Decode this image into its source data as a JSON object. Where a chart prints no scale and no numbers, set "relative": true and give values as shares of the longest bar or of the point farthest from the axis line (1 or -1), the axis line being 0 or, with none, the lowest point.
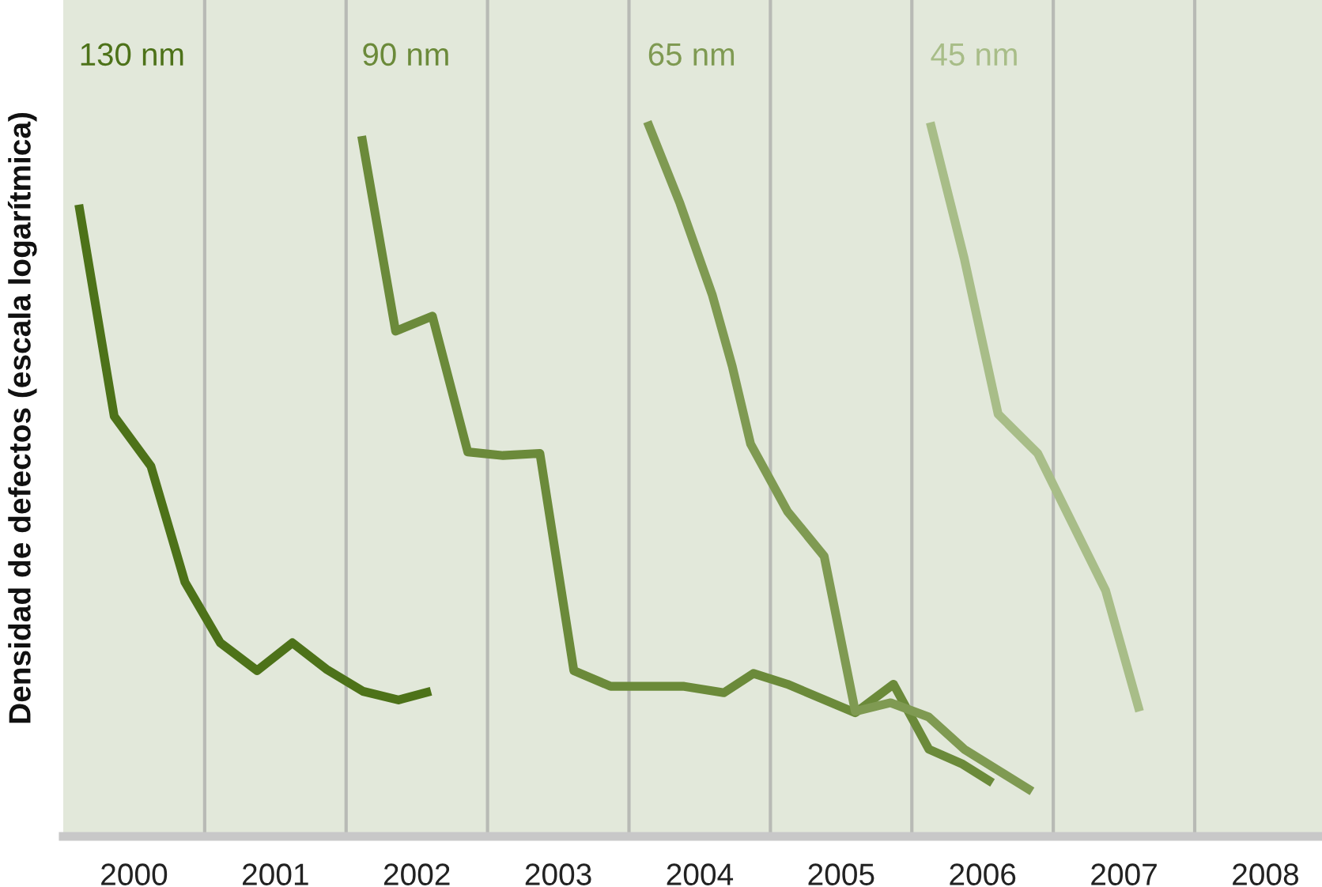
{
  "chart_data": {
    "type": "line",
    "relative": true,
    "ylabel": "Densidad de defectos (escala logarítmica)",
    "xlim": [
      2000,
      2008.9
    ],
    "xticks": [
      {
        "value": 2000.5,
        "label": "2000"
      },
      {
        "value": 2001.5,
        "label": "2001"
      },
      {
        "value": 2002.5,
        "label": "2002"
      },
      {
        "value": 2003.5,
        "label": "2003"
      },
      {
        "value": 2004.5,
        "label": "2004"
      },
      {
        "value": 2005.5,
        "label": "2005"
      },
      {
        "value": 2006.5,
        "label": "2006"
      },
      {
        "value": 2007.5,
        "label": "2007"
      },
      {
        "value": 2008.5,
        "label": "2008"
      }
    ],
    "ref_lines": [
      {
        "axis": "x",
        "value": 2001,
        "color": "#b8bab5"
      },
      {
        "axis": "x",
        "value": 2002,
        "color": "#b8bab5"
      },
      {
        "axis": "x",
        "value": 2003,
        "color": "#b8bab5"
      },
      {
        "axis": "x",
        "value": 2004,
        "color": "#b8bab5"
      },
      {
        "axis": "x",
        "value": 2005,
        "color": "#b8bab5"
      },
      {
        "axis": "x",
        "value": 2006,
        "color": "#b8bab5"
      },
      {
        "axis": "x",
        "value": 2007,
        "color": "#b8bab5"
      },
      {
        "axis": "x",
        "value": 2008,
        "color": "#b8bab5"
      }
    ],
    "grid": false,
    "legend": false,
    "marker": "none",
    "line_style": "solid",
    "series": [
      {
        "name": "130 nm",
        "color": "#4d7219",
        "x": [
          2000.11,
          2000.36,
          2000.62,
          2000.86,
          2001.11,
          2001.37,
          2001.62,
          2001.86,
          2002.12,
          2002.37,
          2002.6
        ],
        "values": [
          0.884,
          0.588,
          0.518,
          0.356,
          0.271,
          0.232,
          0.271,
          0.234,
          0.203,
          0.191,
          0.203
        ]
      },
      {
        "name": "90 nm",
        "color": "#6b8a3a",
        "x": [
          2002.11,
          2002.35,
          2002.61,
          2002.86,
          2003.11,
          2003.37,
          2003.61,
          2003.87,
          2004.39,
          2004.67,
          2004.88,
          2005.12,
          2005.6,
          2005.87,
          2006.12,
          2006.36,
          2006.57
        ],
        "values": [
          0.98,
          0.707,
          0.728,
          0.538,
          0.533,
          0.536,
          0.232,
          0.21,
          0.21,
          0.201,
          0.228,
          0.213,
          0.173,
          0.213,
          0.122,
          0.101,
          0.075
        ]
      },
      {
        "name": "65 nm",
        "color": "#7f9a52",
        "x": [
          2004.13,
          2004.36,
          2004.59,
          2004.73,
          2004.86,
          2005.12,
          2005.38,
          2005.6,
          2005.85,
          2006.12,
          2006.37,
          2006.85
        ],
        "values": [
          1.0,
          0.886,
          0.757,
          0.658,
          0.549,
          0.455,
          0.392,
          0.175,
          0.187,
          0.167,
          0.122,
          0.063
        ]
      },
      {
        "name": "45 nm",
        "color": "#a8bd88",
        "x": [
          2006.13,
          2006.37,
          2006.61,
          2006.89,
          2007.37,
          2007.61
        ],
        "values": [
          0.999,
          0.809,
          0.591,
          0.536,
          0.344,
          0.175
        ]
      }
    ]
  }
}
